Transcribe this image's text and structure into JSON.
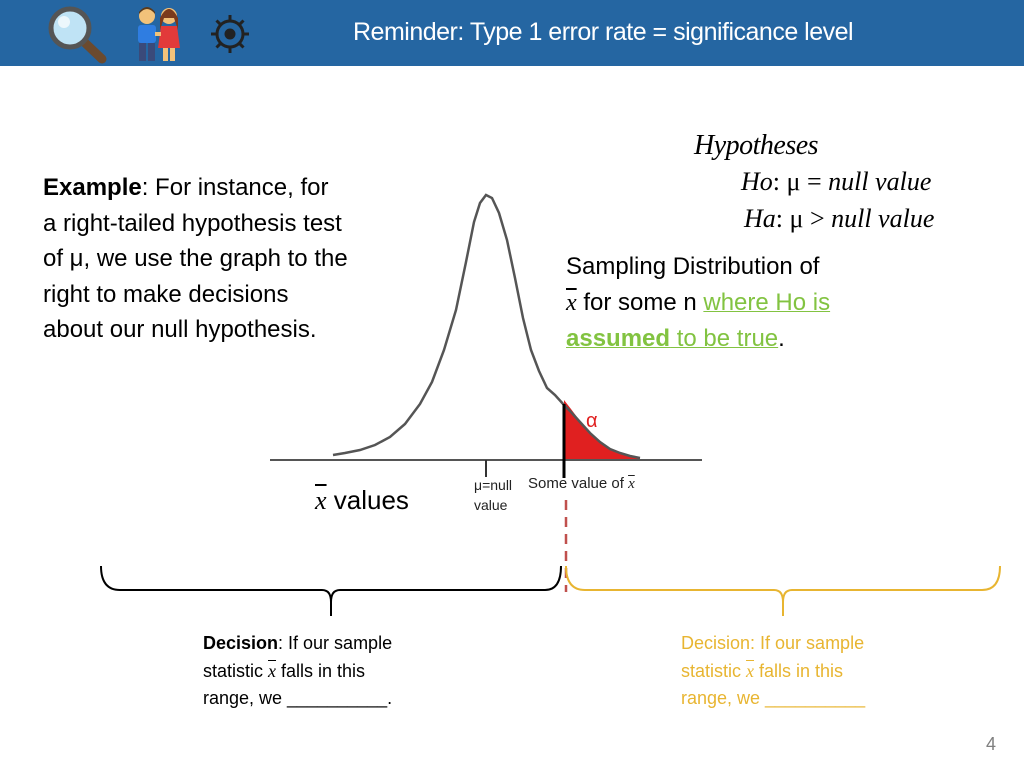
{
  "header": {
    "title": "Reminder: Type 1 error rate = significance level",
    "icons": [
      "magnifier-icon",
      "couple-icon",
      "gear-icon"
    ]
  },
  "example": {
    "bold": "Example",
    "text": ": For instance, for a right-tailed hypothesis test of μ, we use the graph to the right to make decisions about our null hypothesis."
  },
  "hypotheses": {
    "title": "Hypotheses",
    "h0_lhs": "Ho",
    "h0_rel": ":  μ = ",
    "h0_rhs": "null value",
    "ha_lhs": "Ha",
    "ha_rel": ": μ > ",
    "ha_rhs": "null value"
  },
  "sampling": {
    "line1": "Sampling Distribution of",
    "xbar": "x",
    "line2": " for some n ",
    "green1": "where Ho is",
    "green_bold": "assumed",
    "green2": " to be true",
    "end": "."
  },
  "graph": {
    "alpha": "α",
    "mu_line1": "μ=null",
    "mu_line2": "value",
    "some_value": "Some value of ",
    "xbar": "x",
    "x_axis_label": " values"
  },
  "decision_left": {
    "bold": "Decision",
    "line1": ": If our sample",
    "line2a": "statistic ",
    "xbar": "x",
    "line2b": "  falls in this",
    "line3": "range, we __________."
  },
  "decision_right": {
    "bold": "Decision",
    "line1": ": If our sample",
    "line2a": "statistic ",
    "xbar": "x",
    "line2b": "  falls in this",
    "line3": "range, we __________"
  },
  "page_number": "4",
  "colors": {
    "header": "#2566a2",
    "tail": "#e02020",
    "left_brace": "#000000",
    "right_brace": "#e8b531",
    "green": "#82c341"
  }
}
